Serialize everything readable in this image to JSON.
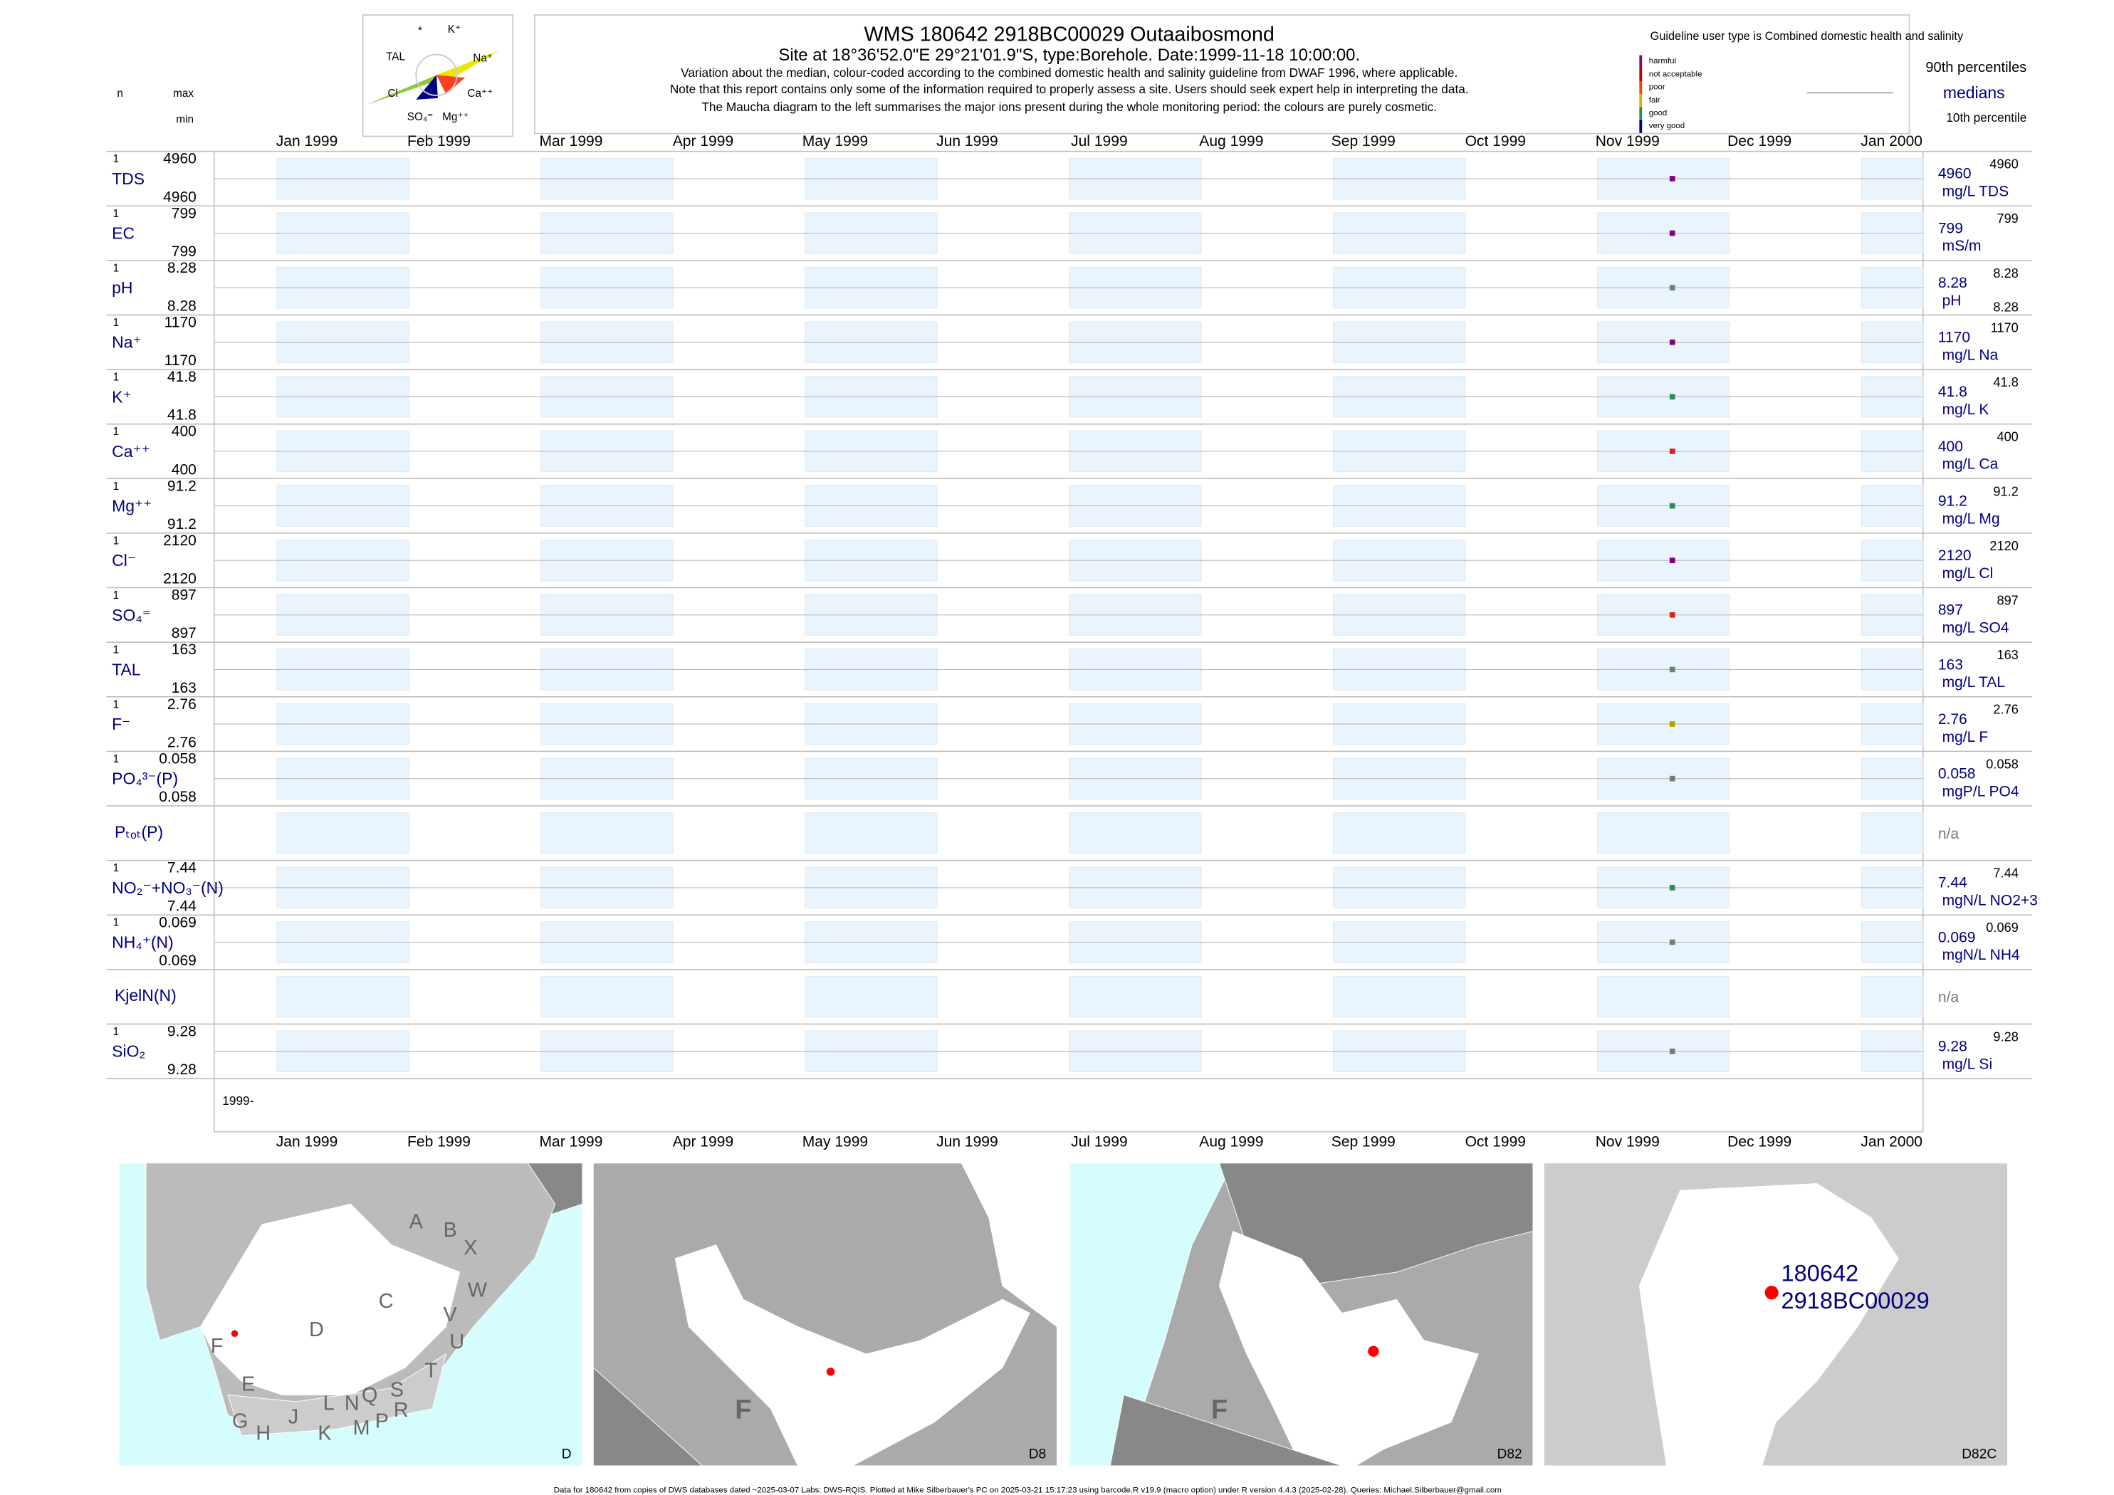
{
  "header": {
    "title": "WMS 180642 2918BC00029 Outaaibosmond",
    "subtitle": "Site at 18°36'52.0\"E 29°21'01.9\"S, type:Borehole. Date:1999-11-18 10:00:00.",
    "notes": [
      "Variation about the median,  colour-coded according to the combined domestic health and salinity guideline from DWAF 1996, where applicable.",
      "Note that this report contains only some of the information required to properly assess a site. Users should seek expert help in interpreting the data.",
      "The Maucha diagram to the left summarises the major ions present during the whole monitoring period: the colours are purely cosmetic."
    ]
  },
  "maucha": [
    "*",
    "K⁺",
    "TAL",
    "Na⁺",
    "Cl",
    "Ca⁺⁺",
    "SO₄⁼",
    "Mg⁺⁺"
  ],
  "legend": {
    "guideline": "Guideline user type is Combined domestic health and salinity",
    "classes": [
      {
        "name": "harmful",
        "color": "#8b008b"
      },
      {
        "name": "not acceptable",
        "color": "#c00000"
      },
      {
        "name": "poor",
        "color": "#ff4000"
      },
      {
        "name": "fair",
        "color": "#e0b000"
      },
      {
        "name": "good",
        "color": "#2e8b57"
      },
      {
        "name": "very good",
        "color": "#00008b"
      }
    ],
    "p90": "90th percentiles",
    "median": "medians",
    "p10": "10th percentile"
  },
  "columns": {
    "n": "n",
    "max": "max",
    "min": "min"
  },
  "months": [
    "Jan 1999",
    "Feb 1999",
    "Mar 1999",
    "Apr 1999",
    "May 1999",
    "Jun 1999",
    "Jul 1999",
    "Aug 1999",
    "Sep 1999",
    "Oct 1999",
    "Nov 1999",
    "Dec 1999",
    "Jan 2000"
  ],
  "axis_start": "1999-",
  "rows": [
    {
      "label": "TDS",
      "n": "1",
      "max": "4960",
      "min": "4960",
      "value": "4960",
      "unit": "mg/L TDS",
      "rmax": "4960",
      "color": "#800080"
    },
    {
      "label": "EC",
      "n": "1",
      "max": "799",
      "min": "799",
      "value": "799",
      "unit": "mS/m",
      "rmax": "799",
      "color": "#800080"
    },
    {
      "label": "pH",
      "n": "1",
      "max": "8.28",
      "min": "8.28",
      "value": "8.28",
      "unit": "pH",
      "rmax": "8.28",
      "rmin": "8.28",
      "color": "#708070"
    },
    {
      "label": "Na⁺",
      "n": "1",
      "max": "1170",
      "min": "1170",
      "value": "1170",
      "unit": "mg/L Na",
      "rmax": "1170",
      "color": "#800080"
    },
    {
      "label": "K⁺",
      "n": "1",
      "max": "41.8",
      "min": "41.8",
      "value": "41.8",
      "unit": "mg/L K",
      "rmax": "41.8",
      "color": "#2e8b57"
    },
    {
      "label": "Ca⁺⁺",
      "n": "1",
      "max": "400",
      "min": "400",
      "value": "400",
      "unit": "mg/L Ca",
      "rmax": "400",
      "color": "#e02020"
    },
    {
      "label": "Mg⁺⁺",
      "n": "1",
      "max": "91.2",
      "min": "91.2",
      "value": "91.2",
      "unit": "mg/L Mg",
      "rmax": "91.2",
      "color": "#2e8b57"
    },
    {
      "label": "Cl⁻",
      "n": "1",
      "max": "2120",
      "min": "2120",
      "value": "2120",
      "unit": "mg/L Cl",
      "rmax": "2120",
      "color": "#800080"
    },
    {
      "label": "SO₄⁼",
      "n": "1",
      "max": "897",
      "min": "897",
      "value": "897",
      "unit": "mg/L SO4",
      "rmax": "897",
      "color": "#e02020"
    },
    {
      "label": "TAL",
      "n": "1",
      "max": "163",
      "min": "163",
      "value": "163",
      "unit": "mg/L TAL",
      "rmax": "163",
      "color": "#708070"
    },
    {
      "label": "F⁻",
      "n": "1",
      "max": "2.76",
      "min": "2.76",
      "value": "2.76",
      "unit": "mg/L F",
      "rmax": "2.76",
      "color": "#b8a000"
    },
    {
      "label": "PO₄³⁻(P)",
      "n": "1",
      "max": "0.058",
      "min": "0.058",
      "value": "0.058",
      "unit": "mgP/L PO4",
      "rmax": "0.058",
      "color": "#708070"
    },
    {
      "label": "Pₜₒₜ(P)",
      "value": "n/a"
    },
    {
      "label": "NO₂⁻+NO₃⁻(N)",
      "n": "1",
      "max": "7.44",
      "min": "7.44",
      "value": "7.44",
      "unit": "mgN/L NO2+3",
      "rmax": "7.44",
      "color": "#2e8b57"
    },
    {
      "label": "NH₄⁺(N)",
      "n": "1",
      "max": "0.069",
      "min": "0.069",
      "value": "0.069",
      "unit": "mgN/L NH4",
      "rmax": "0.069",
      "color": "#708070"
    },
    {
      "label": "KjelN(N)",
      "value": "n/a"
    },
    {
      "label": "SiO₂",
      "n": "1",
      "max": "9.28",
      "min": "9.28",
      "value": "9.28",
      "unit": "mg/L Si",
      "rmax": "9.28",
      "color": "#708070"
    }
  ],
  "maps": [
    {
      "label": "D",
      "regions": [
        "A",
        "B",
        "X",
        "C",
        "W",
        "D",
        "V",
        "U",
        "F",
        "E",
        "T",
        "S",
        "R",
        "Q",
        "N",
        "L",
        "M",
        "P",
        "K",
        "J",
        "H",
        "G"
      ]
    },
    {
      "label": "D8",
      "regions": [
        "F"
      ]
    },
    {
      "label": "D82",
      "regions": [
        "F"
      ]
    },
    {
      "label": "D82C",
      "site": [
        "180642",
        "2918BC00029"
      ]
    }
  ],
  "footer": "Data for 180642 from copies of DWS databases dated ~2025-03-07 Labs: DWS-RQIS. Plotted at Mike Silberbauer's PC on 2025-03-21 15:17:23 using barcode.R v19.9 (macro option) under R version 4.4.3 (2025-02-28). Queries: Michael.Silberbauer@gmail.com"
}
